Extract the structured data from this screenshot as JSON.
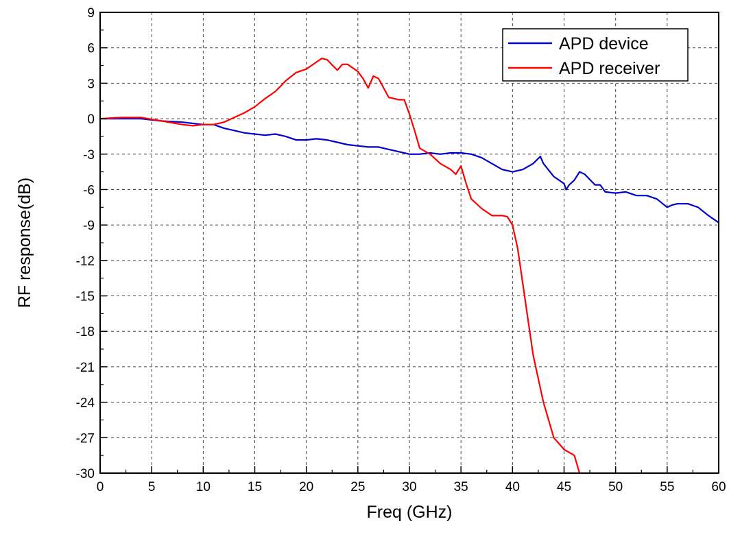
{
  "chart_data": {
    "type": "line",
    "xlabel": "Freq (GHz)",
    "ylabel": "RF response(dB)",
    "xlim": [
      0,
      60
    ],
    "ylim": [
      -30,
      9
    ],
    "xticks": [
      0,
      5,
      10,
      15,
      20,
      25,
      30,
      35,
      40,
      45,
      50,
      55,
      60
    ],
    "yticks": [
      9,
      6,
      3,
      0,
      -3,
      -6,
      -9,
      -12,
      -15,
      -18,
      -21,
      -24,
      -27,
      -30
    ],
    "grid": true,
    "legend_position": "top-right",
    "series": [
      {
        "name": "APD device",
        "color": "#0000cc",
        "x": [
          0,
          2,
          4,
          6,
          8,
          9,
          10,
          11,
          12,
          13,
          14,
          15,
          16,
          17,
          18,
          19,
          20,
          21,
          22,
          23,
          24,
          25,
          26,
          27,
          28,
          29,
          30,
          31,
          32,
          33,
          34,
          35,
          36,
          37,
          38,
          39,
          40,
          41,
          42,
          42.7,
          43,
          44,
          45,
          45.2,
          45.5,
          46,
          46.5,
          47,
          48,
          48.5,
          49,
          50,
          51,
          52,
          53,
          54,
          55,
          55.5,
          56,
          57,
          58,
          59,
          60
        ],
        "y": [
          0,
          0,
          0,
          -0.2,
          -0.3,
          -0.4,
          -0.5,
          -0.5,
          -0.8,
          -1.0,
          -1.2,
          -1.3,
          -1.4,
          -1.3,
          -1.5,
          -1.8,
          -1.8,
          -1.7,
          -1.8,
          -2.0,
          -2.2,
          -2.3,
          -2.4,
          -2.4,
          -2.6,
          -2.8,
          -3.0,
          -3.0,
          -2.9,
          -3.0,
          -2.9,
          -2.9,
          -3.0,
          -3.3,
          -3.8,
          -4.3,
          -4.5,
          -4.3,
          -3.8,
          -3.2,
          -3.8,
          -4.9,
          -5.5,
          -6.0,
          -5.6,
          -5.2,
          -4.5,
          -4.7,
          -5.6,
          -5.6,
          -6.2,
          -6.3,
          -6.2,
          -6.5,
          -6.5,
          -6.8,
          -7.5,
          -7.3,
          -7.2,
          -7.2,
          -7.5,
          -8.2,
          -8.8
        ]
      },
      {
        "name": "APD receiver",
        "color": "#ff0000",
        "x": [
          0,
          2,
          4,
          6,
          8,
          9,
          10,
          11,
          12,
          13,
          14,
          15,
          16,
          17,
          18,
          19,
          20,
          21,
          21.5,
          22,
          23,
          23.5,
          24,
          25,
          25.5,
          26,
          26.5,
          27,
          28,
          29,
          29.5,
          30,
          30.5,
          31,
          32,
          33,
          34,
          34.5,
          35,
          35.5,
          36,
          37,
          38,
          39,
          39.5,
          40,
          40.5,
          41,
          42,
          43,
          44,
          44.5,
          45,
          46,
          46.5
        ],
        "y": [
          0,
          0.1,
          0.1,
          -0.2,
          -0.5,
          -0.6,
          -0.5,
          -0.5,
          -0.3,
          0.1,
          0.5,
          1.0,
          1.7,
          2.3,
          3.2,
          3.9,
          4.2,
          4.8,
          5.1,
          5.0,
          4.1,
          4.6,
          4.6,
          4.0,
          3.4,
          2.6,
          3.6,
          3.4,
          1.8,
          1.6,
          1.6,
          0.4,
          -1.0,
          -2.5,
          -3.0,
          -3.8,
          -4.3,
          -4.7,
          -4.0,
          -5.5,
          -6.8,
          -7.6,
          -8.2,
          -8.2,
          -8.3,
          -9.0,
          -11.0,
          -14.0,
          -20.0,
          -24.0,
          -27.0,
          -27.5,
          -28.0,
          -28.5,
          -30.0
        ]
      }
    ]
  }
}
